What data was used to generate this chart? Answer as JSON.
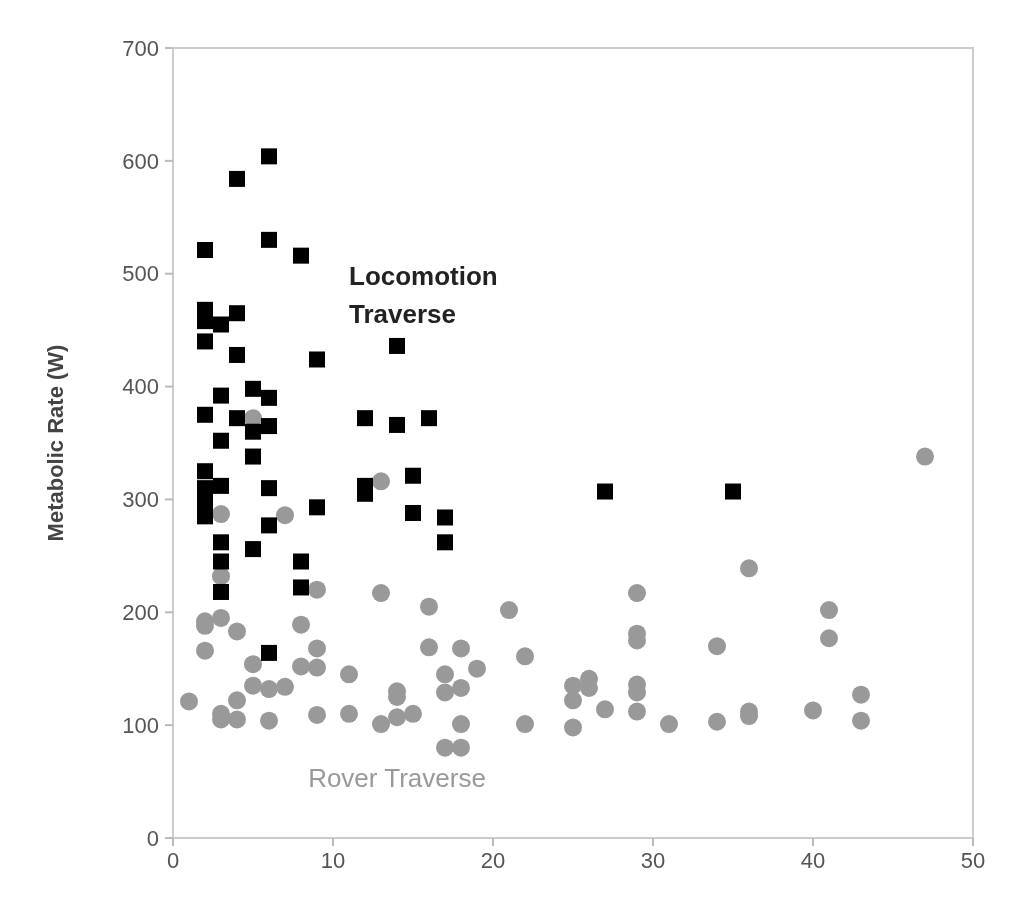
{
  "chart_data": {
    "type": "scatter",
    "ylabel": "Metabolic Rate (W)",
    "xlim": [
      0,
      50
    ],
    "ylim": [
      0,
      700
    ],
    "xticks": [
      0,
      10,
      20,
      30,
      40,
      50
    ],
    "yticks": [
      0,
      100,
      200,
      300,
      400,
      500,
      600,
      700
    ],
    "grid": false,
    "legend": false,
    "series": [
      {
        "name": "Rover Traverse",
        "color": "#999999",
        "marker": "circle",
        "x": [
          1,
          2,
          2,
          2,
          3,
          3,
          3,
          3,
          3,
          4,
          4,
          4,
          5,
          5,
          5,
          6,
          6,
          7,
          7,
          8,
          8,
          9,
          9,
          9,
          9,
          11,
          11,
          13,
          13,
          13,
          14,
          14,
          14,
          15,
          16,
          16,
          17,
          17,
          17,
          18,
          18,
          18,
          18,
          19,
          21,
          22,
          22,
          25,
          25,
          25,
          26,
          26,
          27,
          29,
          29,
          29,
          29,
          29,
          29,
          31,
          34,
          34,
          36,
          36,
          36,
          40,
          41,
          41,
          43,
          43,
          47
        ],
        "values": [
          121,
          192,
          188,
          166,
          287,
          232,
          195,
          110,
          105,
          183,
          122,
          105,
          372,
          154,
          135,
          132,
          104,
          286,
          134,
          189,
          152,
          220,
          168,
          151,
          109,
          145,
          110,
          316,
          217,
          101,
          130,
          125,
          107,
          110,
          205,
          169,
          145,
          129,
          80,
          168,
          133,
          101,
          80,
          150,
          202,
          161,
          101,
          135,
          122,
          98,
          141,
          133,
          114,
          217,
          181,
          175,
          136,
          129,
          112,
          101,
          170,
          103,
          239,
          112,
          108,
          113,
          202,
          177,
          127,
          104,
          338
        ]
      },
      {
        "name": "Locomotion Traverse",
        "color": "#000000",
        "marker": "square",
        "x": [
          2,
          2,
          2,
          2,
          2,
          2,
          2,
          2,
          2,
          3,
          3,
          3,
          3,
          3,
          3,
          3,
          4,
          4,
          4,
          4,
          5,
          5,
          5,
          5,
          6,
          6,
          6,
          6,
          6,
          6,
          6,
          8,
          8,
          8,
          9,
          9,
          12,
          12,
          12,
          14,
          14,
          15,
          15,
          16,
          17,
          17,
          27,
          35
        ],
        "values": [
          521,
          468,
          458,
          440,
          375,
          325,
          310,
          298,
          285,
          455,
          392,
          352,
          312,
          262,
          245,
          218,
          584,
          465,
          428,
          372,
          398,
          360,
          338,
          256,
          604,
          530,
          390,
          365,
          310,
          277,
          164,
          516,
          245,
          222,
          424,
          293,
          372,
          312,
          305,
          436,
          366,
          321,
          288,
          372,
          284,
          262,
          307,
          307
        ]
      }
    ]
  }
}
